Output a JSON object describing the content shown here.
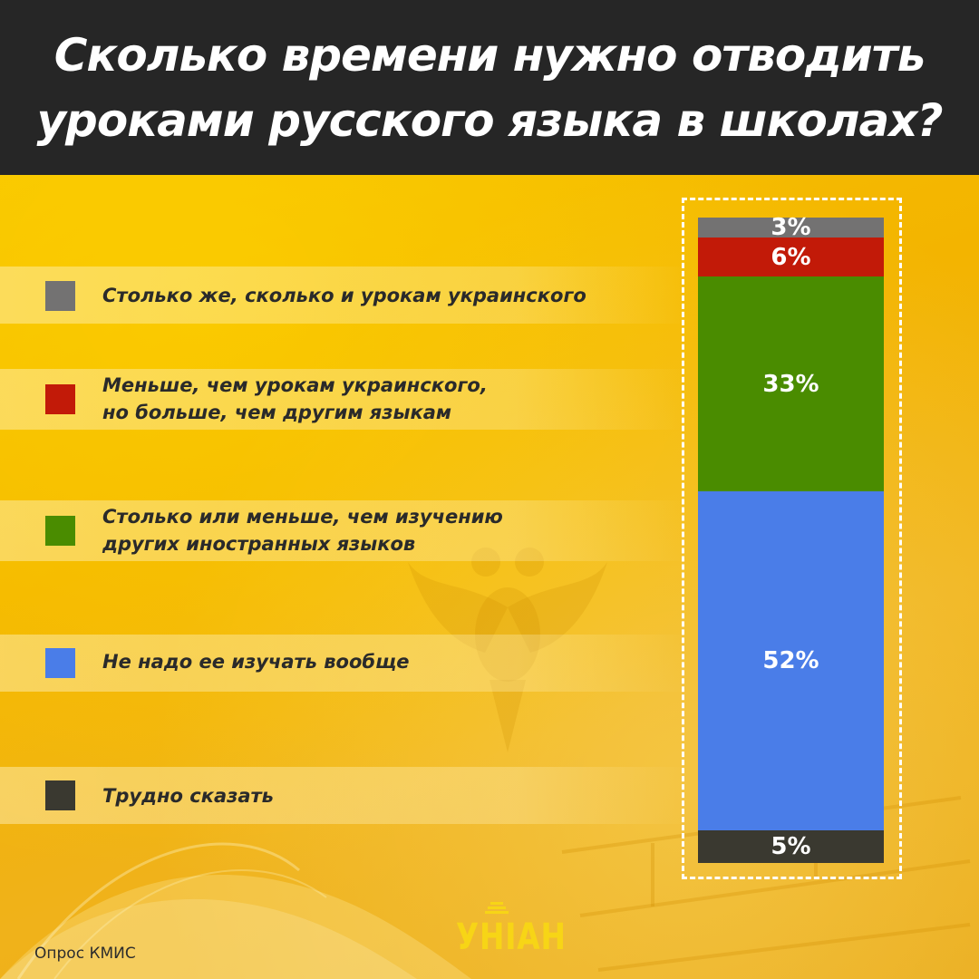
{
  "title": "Сколько времени нужно отводить уроками русского языка в школах?",
  "source": "Опрос КМИС",
  "logo": "УНІАН",
  "colors": {
    "header_bg": "#262626",
    "background": "#f5b800",
    "gray": "#737272",
    "red": "#c21a08",
    "green": "#4a8c00",
    "blue": "#4a7de8",
    "dark": "#3a3930"
  },
  "chart_data": {
    "type": "bar",
    "stacked": true,
    "orientation": "vertical",
    "series": [
      {
        "name": "Столько же, сколько и урокам украинского",
        "value": 3,
        "label": "3%",
        "color": "#737272"
      },
      {
        "name": "Меньше, чем урокам украинского, но больше, чем другим языкам",
        "value": 6,
        "label": "6%",
        "color": "#c21a08"
      },
      {
        "name": "Столько или меньше, чем изучению других иностранных языков",
        "value": 33,
        "label": "33%",
        "color": "#4a8c00"
      },
      {
        "name": "Не надо ее изучать вообще",
        "value": 52,
        "label": "52%",
        "color": "#4a7de8"
      },
      {
        "name": "Трудно сказать",
        "value": 5,
        "label": "5%",
        "color": "#3a3930"
      }
    ],
    "legend": [
      {
        "lines": [
          "Столько же, сколько и урокам украинского"
        ],
        "color": "#737272"
      },
      {
        "lines": [
          "Меньше, чем урокам украинского,",
          "но больше, чем другим языкам"
        ],
        "color": "#c21a08"
      },
      {
        "lines": [
          "Столько или меньше, чем изучению",
          "других иностранных языков"
        ],
        "color": "#4a8c00"
      },
      {
        "lines": [
          "Не надо ее изучать вообще"
        ],
        "color": "#4a7de8"
      },
      {
        "lines": [
          "Трудно сказать"
        ],
        "color": "#3a3930"
      }
    ],
    "legend_placement": "left"
  }
}
